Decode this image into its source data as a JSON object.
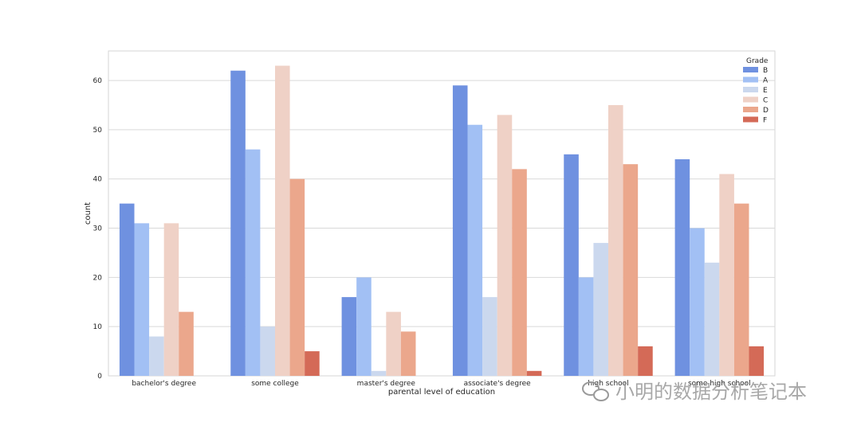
{
  "chart_data": {
    "type": "bar",
    "title": "",
    "xlabel": "parental level of education",
    "ylabel": "count",
    "ylim": [
      0,
      66
    ],
    "yticks": [
      0,
      10,
      20,
      30,
      40,
      50,
      60
    ],
    "grid": "horizontal",
    "legend": {
      "title": "Grade",
      "placement": "top-right"
    },
    "categories": [
      "bachelor's degree",
      "some college",
      "master's degree",
      "associate's degree",
      "high school",
      "some high school"
    ],
    "series": [
      {
        "name": "B",
        "color": "#6f91e0",
        "values": [
          35,
          62,
          16,
          59,
          45,
          44
        ]
      },
      {
        "name": "A",
        "color": "#a2c0f4",
        "values": [
          31,
          46,
          20,
          51,
          20,
          30
        ]
      },
      {
        "name": "E",
        "color": "#cbd8ee",
        "values": [
          8,
          10,
          1,
          16,
          27,
          23
        ]
      },
      {
        "name": "C",
        "color": "#efd1c6",
        "values": [
          31,
          63,
          13,
          53,
          55,
          41
        ]
      },
      {
        "name": "D",
        "color": "#eba78c",
        "values": [
          13,
          40,
          9,
          42,
          43,
          35
        ]
      },
      {
        "name": "F",
        "color": "#d46a57",
        "values": [
          0,
          5,
          0,
          1,
          6,
          6
        ]
      }
    ]
  },
  "watermark": {
    "text": "小明的数据分析笔记本",
    "icon": "wechat-icon"
  }
}
